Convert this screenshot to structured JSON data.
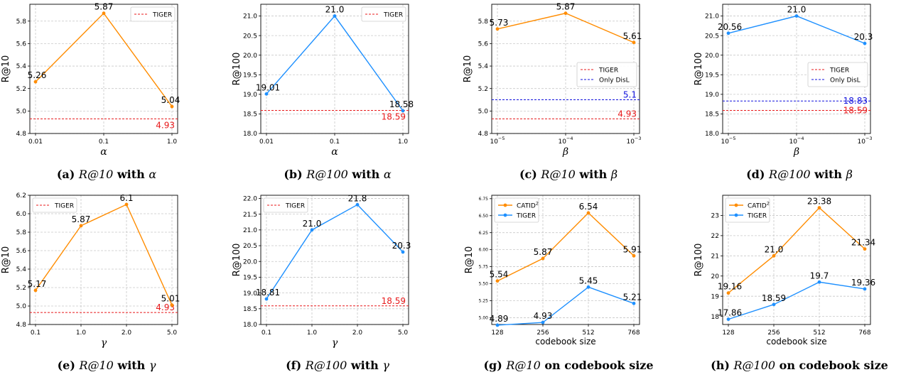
{
  "colors": {
    "catid": "#ff8c00",
    "tiger_line": "#1e90ff",
    "tiger_ref": "#e8191b",
    "disl_ref": "#1010dd"
  },
  "chart_data": [
    {
      "type": "line",
      "caption": {
        "tag": "(a)",
        "metric": "R@10",
        "joiner": "with",
        "param": "α"
      },
      "xlabel": "α",
      "ylabel": "R@10",
      "xscale": "category",
      "x_ticks": [
        "0.01",
        "0.1",
        "1.0"
      ],
      "x": [
        0,
        1,
        2
      ],
      "ylim": [
        4.8,
        5.95
      ],
      "y_ticks": [
        "4.8",
        "5.0",
        "5.2",
        "5.4",
        "5.6",
        "5.8"
      ],
      "y_tick_values": [
        4.8,
        5.0,
        5.2,
        5.4,
        5.6,
        5.8
      ],
      "series": [
        {
          "color_key": "catid",
          "values": [
            5.26,
            5.87,
            5.04
          ],
          "labels": [
            "5.26",
            "5.87",
            "5.04"
          ]
        }
      ],
      "ref_lines": [
        {
          "name": "TIGER",
          "value": 4.93,
          "label": "4.93",
          "color_key": "tiger_ref",
          "label_pos": "right-below"
        }
      ],
      "legend": {
        "position": "top-right",
        "entries": [
          {
            "text": "TIGER",
            "style": "dashed",
            "color_key": "tiger_ref"
          }
        ]
      }
    },
    {
      "type": "line",
      "caption": {
        "tag": "(b)",
        "metric": "R@100",
        "joiner": "with",
        "param": "α"
      },
      "xlabel": "α",
      "ylabel": "R@100",
      "xscale": "category",
      "x_ticks": [
        "0.01",
        "0.1",
        "1.0"
      ],
      "x": [
        0,
        1,
        2
      ],
      "ylim": [
        18.0,
        21.3
      ],
      "y_ticks": [
        "18.0",
        "18.5",
        "19.0",
        "19.5",
        "20.0",
        "20.5",
        "21.0"
      ],
      "y_tick_values": [
        18.0,
        18.5,
        19.0,
        19.5,
        20.0,
        20.5,
        21.0
      ],
      "series": [
        {
          "color_key": "tiger_line",
          "values": [
            19.01,
            21.0,
            18.58
          ],
          "labels": [
            "19.01",
            "21.0",
            "18.58"
          ]
        }
      ],
      "ref_lines": [
        {
          "name": "TIGER",
          "value": 18.59,
          "label": "18.59",
          "color_key": "tiger_ref",
          "label_pos": "right-below"
        }
      ],
      "legend": {
        "position": "top-right",
        "entries": [
          {
            "text": "TIGER",
            "style": "dashed",
            "color_key": "tiger_ref"
          }
        ]
      }
    },
    {
      "type": "line",
      "caption": {
        "tag": "(c)",
        "metric": "R@10",
        "joiner": "with",
        "param": "β"
      },
      "xlabel": "β",
      "ylabel": "R@10",
      "xscale": "log",
      "x_ticks": [
        "10^-5",
        "10^-4",
        "10^-3"
      ],
      "x": [
        0,
        1,
        2
      ],
      "ylim": [
        4.8,
        5.95
      ],
      "y_ticks": [
        "4.8",
        "5.0",
        "5.2",
        "5.4",
        "5.6",
        "5.8"
      ],
      "y_tick_values": [
        4.8,
        5.0,
        5.2,
        5.4,
        5.6,
        5.8
      ],
      "series": [
        {
          "color_key": "catid",
          "values": [
            5.73,
            5.87,
            5.61
          ],
          "labels": [
            "5.73",
            "5.87",
            "5.61"
          ]
        }
      ],
      "ref_lines": [
        {
          "name": "TIGER",
          "value": 4.93,
          "label": "4.93",
          "color_key": "tiger_ref",
          "label_pos": "right-above"
        },
        {
          "name": "Only DisL",
          "value": 5.1,
          "label": "5.1",
          "color_key": "disl_ref",
          "label_pos": "right-above"
        }
      ],
      "legend": {
        "position": "center-right",
        "entries": [
          {
            "text": "TIGER",
            "style": "dashed",
            "color_key": "tiger_ref"
          },
          {
            "text": "Only DisL",
            "style": "dashed",
            "color_key": "disl_ref"
          }
        ]
      }
    },
    {
      "type": "line",
      "caption": {
        "tag": "(d)",
        "metric": "R@100",
        "joiner": "with",
        "param": "β"
      },
      "xlabel": "β",
      "ylabel": "R@100",
      "xscale": "log",
      "x_ticks": [
        "10^-5",
        "10^-4",
        "10^-3"
      ],
      "x": [
        0,
        1,
        2
      ],
      "ylim": [
        18.0,
        21.3
      ],
      "y_ticks": [
        "18.0",
        "18.5",
        "19.0",
        "19.5",
        "20.0",
        "20.5",
        "21.0"
      ],
      "y_tick_values": [
        18.0,
        18.5,
        19.0,
        19.5,
        20.0,
        20.5,
        21.0
      ],
      "series": [
        {
          "color_key": "tiger_line",
          "values": [
            20.56,
            21.0,
            20.3
          ],
          "labels": [
            "20.56",
            "21.0",
            "20.3"
          ]
        }
      ],
      "ref_lines": [
        {
          "name": "TIGER",
          "value": 18.59,
          "label": "18.59",
          "color_key": "tiger_ref",
          "label_pos": "right-on"
        },
        {
          "name": "Only DisL",
          "value": 18.83,
          "label": "18.83",
          "color_key": "disl_ref",
          "label_pos": "right-on"
        }
      ],
      "legend": {
        "position": "center-right",
        "entries": [
          {
            "text": "TIGER",
            "style": "dashed",
            "color_key": "tiger_ref"
          },
          {
            "text": "Only DisL",
            "style": "dashed",
            "color_key": "disl_ref"
          }
        ]
      }
    },
    {
      "type": "line",
      "caption": {
        "tag": "(e)",
        "metric": "R@10",
        "joiner": "with",
        "param": "γ"
      },
      "xlabel": "γ",
      "ylabel": "R@10",
      "xscale": "category",
      "x_ticks": [
        "0.1",
        "1.0",
        "2.0",
        "5.0"
      ],
      "x": [
        0,
        1,
        2,
        3
      ],
      "ylim": [
        4.8,
        6.2
      ],
      "y_ticks": [
        "4.8",
        "5.0",
        "5.2",
        "5.4",
        "5.6",
        "5.8",
        "6.0",
        "6.2"
      ],
      "y_tick_values": [
        4.8,
        5.0,
        5.2,
        5.4,
        5.6,
        5.8,
        6.0,
        6.2
      ],
      "series": [
        {
          "color_key": "catid",
          "values": [
            5.17,
            5.87,
            6.1,
            5.01
          ],
          "labels": [
            "5.17",
            "5.87",
            "6.1",
            "5.01"
          ]
        }
      ],
      "ref_lines": [
        {
          "name": "TIGER",
          "value": 4.93,
          "label": "4.93",
          "color_key": "tiger_ref",
          "label_pos": "right-above"
        }
      ],
      "legend": {
        "position": "top-left",
        "entries": [
          {
            "text": "TIGER",
            "style": "dashed",
            "color_key": "tiger_ref"
          }
        ]
      }
    },
    {
      "type": "line",
      "caption": {
        "tag": "(f)",
        "metric": "R@100",
        "joiner": "with",
        "param": "γ"
      },
      "xlabel": "γ",
      "ylabel": "R@100",
      "xscale": "category",
      "x_ticks": [
        "0.1",
        "1.0",
        "2.0",
        "5.0"
      ],
      "x": [
        0,
        1,
        2,
        3
      ],
      "ylim": [
        18.0,
        22.1
      ],
      "y_ticks": [
        "18.0",
        "18.5",
        "19.0",
        "19.5",
        "20.0",
        "20.5",
        "21.0",
        "21.5",
        "22.0"
      ],
      "y_tick_values": [
        18.0,
        18.5,
        19.0,
        19.5,
        20.0,
        20.5,
        21.0,
        21.5,
        22.0
      ],
      "series": [
        {
          "color_key": "tiger_line",
          "values": [
            18.81,
            21.0,
            21.8,
            20.3
          ],
          "labels": [
            "18.81",
            "21.0",
            "21.8",
            "20.3"
          ]
        }
      ],
      "ref_lines": [
        {
          "name": "TIGER",
          "value": 18.59,
          "label": "18.59",
          "color_key": "tiger_ref",
          "label_pos": "right-above"
        }
      ],
      "legend": {
        "position": "top-left",
        "entries": [
          {
            "text": "TIGER",
            "style": "dashed",
            "color_key": "tiger_ref"
          }
        ]
      }
    },
    {
      "type": "line",
      "caption": {
        "tag": "(g)",
        "metric": "R@10",
        "joiner": "on",
        "param": "codebook size"
      },
      "xlabel": "codebook size",
      "ylabel": "R@10",
      "xscale": "category",
      "x_ticks": [
        "128",
        "256",
        "512",
        "768"
      ],
      "x": [
        0,
        1,
        2,
        3
      ],
      "ylim": [
        4.9,
        6.8
      ],
      "y_ticks": [
        "5.00",
        "5.25",
        "5.50",
        "5.75",
        "6.00",
        "6.25",
        "6.50",
        "6.75"
      ],
      "y_tick_values": [
        5.0,
        5.25,
        5.5,
        5.75,
        6.0,
        6.25,
        6.5,
        6.75
      ],
      "y_tick_size": "small",
      "series": [
        {
          "name": "CATID",
          "superscript": "2",
          "color_key": "catid",
          "values": [
            5.54,
            5.87,
            6.54,
            5.91
          ],
          "labels": [
            "5.54",
            "5.87",
            "6.54",
            "5.91"
          ]
        },
        {
          "name": "TIGER",
          "color_key": "tiger_line",
          "values": [
            4.89,
            4.93,
            5.45,
            5.21
          ],
          "labels": [
            "4.89",
            "4.93",
            "5.45",
            "5.21"
          ]
        }
      ],
      "ref_lines": [],
      "legend": {
        "position": "top-left",
        "entries": [
          {
            "text": "CATID",
            "sup": "2",
            "style": "marker",
            "color_key": "catid"
          },
          {
            "text": "TIGER",
            "style": "marker",
            "color_key": "tiger_line"
          }
        ]
      }
    },
    {
      "type": "line",
      "caption": {
        "tag": "(h)",
        "metric": "R@100",
        "joiner": "on",
        "param": "codebook size"
      },
      "xlabel": "codebook size",
      "ylabel": "R@100",
      "xscale": "category",
      "x_ticks": [
        "128",
        "256",
        "512",
        "768"
      ],
      "x": [
        0,
        1,
        2,
        3
      ],
      "ylim": [
        17.6,
        24.0
      ],
      "y_ticks": [
        "18",
        "19",
        "20",
        "21",
        "22",
        "23"
      ],
      "y_tick_values": [
        18,
        19,
        20,
        21,
        22,
        23
      ],
      "series": [
        {
          "name": "CATID",
          "superscript": "2",
          "color_key": "catid",
          "values": [
            19.16,
            21.0,
            23.38,
            21.34
          ],
          "labels": [
            "19.16",
            "21.0",
            "23.38",
            "21.34"
          ]
        },
        {
          "name": "TIGER",
          "color_key": "tiger_line",
          "values": [
            17.86,
            18.59,
            19.7,
            19.36
          ],
          "labels": [
            "17.86",
            "18.59",
            "19.7",
            "19.36"
          ]
        }
      ],
      "ref_lines": [],
      "legend": {
        "position": "top-left",
        "entries": [
          {
            "text": "CATID",
            "sup": "2",
            "style": "marker",
            "color_key": "catid"
          },
          {
            "text": "TIGER",
            "style": "marker",
            "color_key": "tiger_line"
          }
        ]
      }
    }
  ]
}
